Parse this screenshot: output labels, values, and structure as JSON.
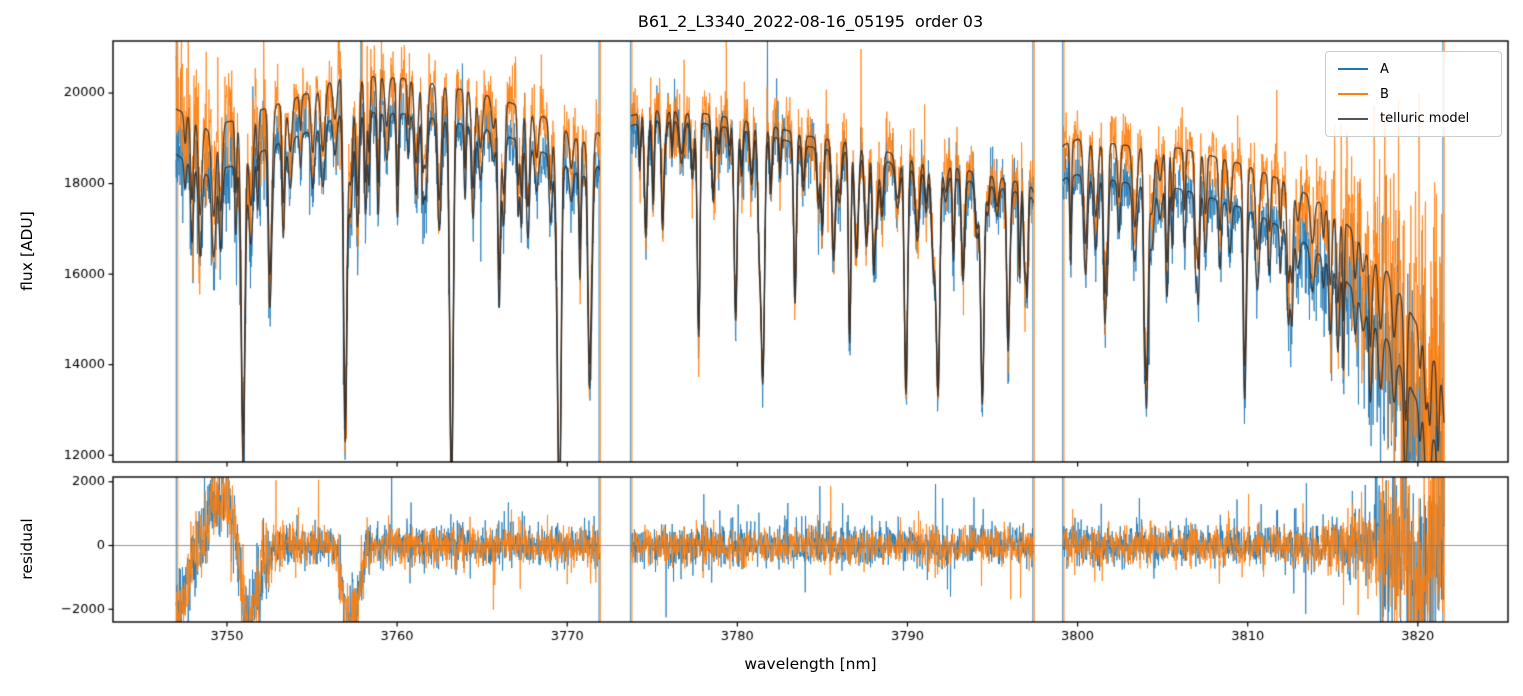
{
  "chart_data": {
    "type": "line",
    "title": "B61_2_L3340_2022-08-16_05195  order 03",
    "xlabel": "wavelength [nm]",
    "ylabel_top": "flux [ADU]",
    "ylabel_bottom": "residual",
    "xlim": [
      3743.3,
      3825.3
    ],
    "xticks": [
      3750,
      3760,
      3770,
      3780,
      3790,
      3800,
      3810,
      3820
    ],
    "panels": {
      "flux": {
        "ylim": [
          11850,
          21150
        ],
        "yticks": [
          12000,
          14000,
          16000,
          18000,
          20000
        ]
      },
      "residual": {
        "ylim": [
          -2400,
          2150
        ],
        "yticks": [
          -2000,
          0,
          2000
        ],
        "zero_line": true
      }
    },
    "legend": {
      "position": "upper right",
      "entries": [
        "A",
        "B",
        "telluric model"
      ]
    },
    "colors": {
      "A": "#1f77b4",
      "B": "#ff7f0e",
      "telluric_model": "#545454",
      "model_plot": "rgba(48,44,41,0.85)",
      "spine": "#000000",
      "zero_line": "#777777"
    },
    "segments": [
      [
        3747.0,
        3771.9
      ],
      [
        3773.75,
        3797.4
      ],
      [
        3799.15,
        3821.55
      ]
    ],
    "gap_edges": [
      3747.05,
      3771.9,
      3773.75,
      3797.4,
      3799.15,
      3821.5
    ],
    "telluric_model": {
      "envelope_B": [
        [
          3747.0,
          19650
        ],
        [
          3748.0,
          19450
        ],
        [
          3749.0,
          19150
        ],
        [
          3749.8,
          19350
        ],
        [
          3750.6,
          19400
        ],
        [
          3751.5,
          19550
        ],
        [
          3752.5,
          19700
        ],
        [
          3753.5,
          19820
        ],
        [
          3754.5,
          19960
        ],
        [
          3755.6,
          20150
        ],
        [
          3756.8,
          20420
        ],
        [
          3758.0,
          20380
        ],
        [
          3759.2,
          20350
        ],
        [
          3760.4,
          20320
        ],
        [
          3761.6,
          20250
        ],
        [
          3762.8,
          20160
        ],
        [
          3764.0,
          20060
        ],
        [
          3765.2,
          19960
        ],
        [
          3766.4,
          19820
        ],
        [
          3767.6,
          19660
        ],
        [
          3768.8,
          19440
        ],
        [
          3770.0,
          19150
        ],
        [
          3770.9,
          18900
        ],
        [
          3771.9,
          19150
        ],
        [
          3773.75,
          19500
        ],
        [
          3775.0,
          19620
        ],
        [
          3776.5,
          19600
        ],
        [
          3778.0,
          19550
        ],
        [
          3779.5,
          19460
        ],
        [
          3781.0,
          19350
        ],
        [
          3782.5,
          19220
        ],
        [
          3784.0,
          19060
        ],
        [
          3785.5,
          18970
        ],
        [
          3787.0,
          18900
        ],
        [
          3788.5,
          18740
        ],
        [
          3790.0,
          18560
        ],
        [
          3791.5,
          18440
        ],
        [
          3793.0,
          18330
        ],
        [
          3794.5,
          18210
        ],
        [
          3796.0,
          18090
        ],
        [
          3797.4,
          17910
        ],
        [
          3799.15,
          18850
        ],
        [
          3800.0,
          18980
        ],
        [
          3801.2,
          18920
        ],
        [
          3802.4,
          18870
        ],
        [
          3803.6,
          18810
        ],
        [
          3804.8,
          18820
        ],
        [
          3806.0,
          18780
        ],
        [
          3807.2,
          18680
        ],
        [
          3808.4,
          18560
        ],
        [
          3809.6,
          18440
        ],
        [
          3810.8,
          18270
        ],
        [
          3812.0,
          18080
        ],
        [
          3813.2,
          17830
        ],
        [
          3814.4,
          17540
        ],
        [
          3815.6,
          17180
        ],
        [
          3816.8,
          16740
        ],
        [
          3818.0,
          16180
        ],
        [
          3819.0,
          15550
        ],
        [
          3820.0,
          14850
        ],
        [
          3821.0,
          14050
        ],
        [
          3821.55,
          13500
        ]
      ],
      "envelope_A": [
        [
          3747.0,
          18650
        ],
        [
          3748.0,
          18400
        ],
        [
          3749.0,
          18150
        ],
        [
          3749.8,
          18350
        ],
        [
          3750.6,
          18400
        ],
        [
          3751.5,
          18600
        ],
        [
          3752.5,
          18800
        ],
        [
          3753.5,
          18950
        ],
        [
          3754.5,
          19100
        ],
        [
          3755.6,
          19300
        ],
        [
          3756.8,
          19620
        ],
        [
          3758.0,
          19580
        ],
        [
          3759.2,
          19560
        ],
        [
          3760.4,
          19540
        ],
        [
          3761.6,
          19480
        ],
        [
          3762.8,
          19400
        ],
        [
          3764.0,
          19300
        ],
        [
          3765.2,
          19200
        ],
        [
          3766.4,
          19050
        ],
        [
          3767.6,
          18880
        ],
        [
          3768.8,
          18650
        ],
        [
          3770.0,
          18380
        ],
        [
          3770.9,
          18150
        ],
        [
          3771.9,
          18400
        ],
        [
          3773.75,
          19280
        ],
        [
          3775.0,
          19400
        ],
        [
          3776.5,
          19380
        ],
        [
          3778.0,
          19330
        ],
        [
          3779.5,
          19230
        ],
        [
          3781.0,
          19120
        ],
        [
          3782.5,
          18990
        ],
        [
          3784.0,
          18830
        ],
        [
          3785.5,
          18740
        ],
        [
          3787.0,
          18680
        ],
        [
          3788.5,
          18520
        ],
        [
          3790.0,
          18340
        ],
        [
          3791.5,
          18220
        ],
        [
          3793.0,
          18100
        ],
        [
          3794.5,
          17980
        ],
        [
          3796.0,
          17860
        ],
        [
          3797.4,
          17680
        ],
        [
          3799.15,
          18100
        ],
        [
          3800.0,
          18200
        ],
        [
          3801.2,
          18120
        ],
        [
          3802.4,
          18050
        ],
        [
          3803.6,
          17970
        ],
        [
          3804.8,
          17950
        ],
        [
          3806.0,
          17880
        ],
        [
          3807.2,
          17760
        ],
        [
          3808.4,
          17620
        ],
        [
          3809.6,
          17470
        ],
        [
          3810.8,
          17270
        ],
        [
          3812.0,
          17030
        ],
        [
          3813.2,
          16730
        ],
        [
          3814.4,
          16380
        ],
        [
          3815.6,
          15930
        ],
        [
          3816.8,
          15380
        ],
        [
          3818.0,
          14700
        ],
        [
          3819.0,
          13950
        ],
        [
          3820.0,
          13150
        ],
        [
          3821.0,
          12300
        ],
        [
          3821.55,
          11750
        ]
      ],
      "deep_lines": [
        [
          3750.95,
          0.36,
          0.11
        ],
        [
          3752.5,
          0.14,
          0.08
        ],
        [
          3753.3,
          0.09,
          0.07
        ],
        [
          3756.95,
          0.37,
          0.1
        ],
        [
          3758.35,
          0.08,
          0.06
        ],
        [
          3761.5,
          0.07,
          0.06
        ],
        [
          3763.2,
          0.36,
          0.1
        ],
        [
          3766.0,
          0.2,
          0.08
        ],
        [
          3767.3,
          0.1,
          0.07
        ],
        [
          3769.55,
          0.38,
          0.1
        ],
        [
          3771.3,
          0.24,
          0.09
        ],
        [
          3774.6,
          0.1,
          0.07
        ],
        [
          3775.6,
          0.08,
          0.06
        ],
        [
          3777.7,
          0.17,
          0.08
        ],
        [
          3779.9,
          0.22,
          0.09
        ],
        [
          3781.5,
          0.28,
          0.1
        ],
        [
          3783.4,
          0.12,
          0.07
        ],
        [
          3785.0,
          0.1,
          0.07
        ],
        [
          3786.6,
          0.12,
          0.07
        ],
        [
          3788.0,
          0.1,
          0.07
        ],
        [
          3789.9,
          0.2,
          0.09
        ],
        [
          3791.8,
          0.26,
          0.1
        ],
        [
          3794.4,
          0.27,
          0.1
        ],
        [
          3795.9,
          0.12,
          0.07
        ],
        [
          3796.9,
          0.1,
          0.07
        ],
        [
          3801.6,
          0.17,
          0.08
        ],
        [
          3804.05,
          0.27,
          0.1
        ],
        [
          3805.3,
          0.09,
          0.06
        ],
        [
          3807.1,
          0.13,
          0.07
        ],
        [
          3809.85,
          0.19,
          0.09
        ],
        [
          3812.6,
          0.11,
          0.07
        ],
        [
          3815.3,
          0.11,
          0.08
        ],
        [
          3817.2,
          0.09,
          0.07
        ],
        [
          3819.3,
          0.13,
          0.08
        ],
        [
          3820.7,
          0.11,
          0.08
        ]
      ],
      "scallops": {
        "seed": 777,
        "start": 3746.8,
        "end": 3822.0,
        "step_min": 0.33,
        "step_rand": 0.6,
        "depth_min": 0.03,
        "depth_rand": 0.1,
        "width_min": 0.05,
        "width_rand": 0.08
      }
    },
    "noise": {
      "seed_A": 1001,
      "seed_B": 2002,
      "seed_res_A": 3003,
      "seed_res_B": 4004,
      "sigma_A": 330,
      "sigma_B": 400,
      "sigma_res_A": 330,
      "sigma_res_B": 300,
      "spike_prob": 0.018,
      "spike_prob_end": 0.06,
      "sample_step_nm": 0.02
    },
    "residual_systematic": [
      [
        3747.0,
        -2300
      ],
      [
        3747.5,
        -1400
      ],
      [
        3748.1,
        -300
      ],
      [
        3748.7,
        500
      ],
      [
        3749.3,
        1300
      ],
      [
        3749.9,
        1500
      ],
      [
        3750.35,
        700
      ],
      [
        3750.7,
        -400
      ],
      [
        3751.05,
        -2500
      ],
      [
        3751.5,
        -2100
      ],
      [
        3752.1,
        -700
      ],
      [
        3752.7,
        -100
      ],
      [
        3753.5,
        0
      ],
      [
        3756.4,
        0
      ],
      [
        3756.8,
        -1500
      ],
      [
        3757.2,
        -2400
      ],
      [
        3757.7,
        -1500
      ],
      [
        3758.2,
        -300
      ],
      [
        3758.8,
        0
      ],
      [
        3819.5,
        0
      ],
      [
        3820.0,
        -1600
      ],
      [
        3820.5,
        -1200
      ],
      [
        3821.0,
        200
      ],
      [
        3821.3,
        400
      ],
      [
        3821.55,
        -300
      ]
    ]
  }
}
